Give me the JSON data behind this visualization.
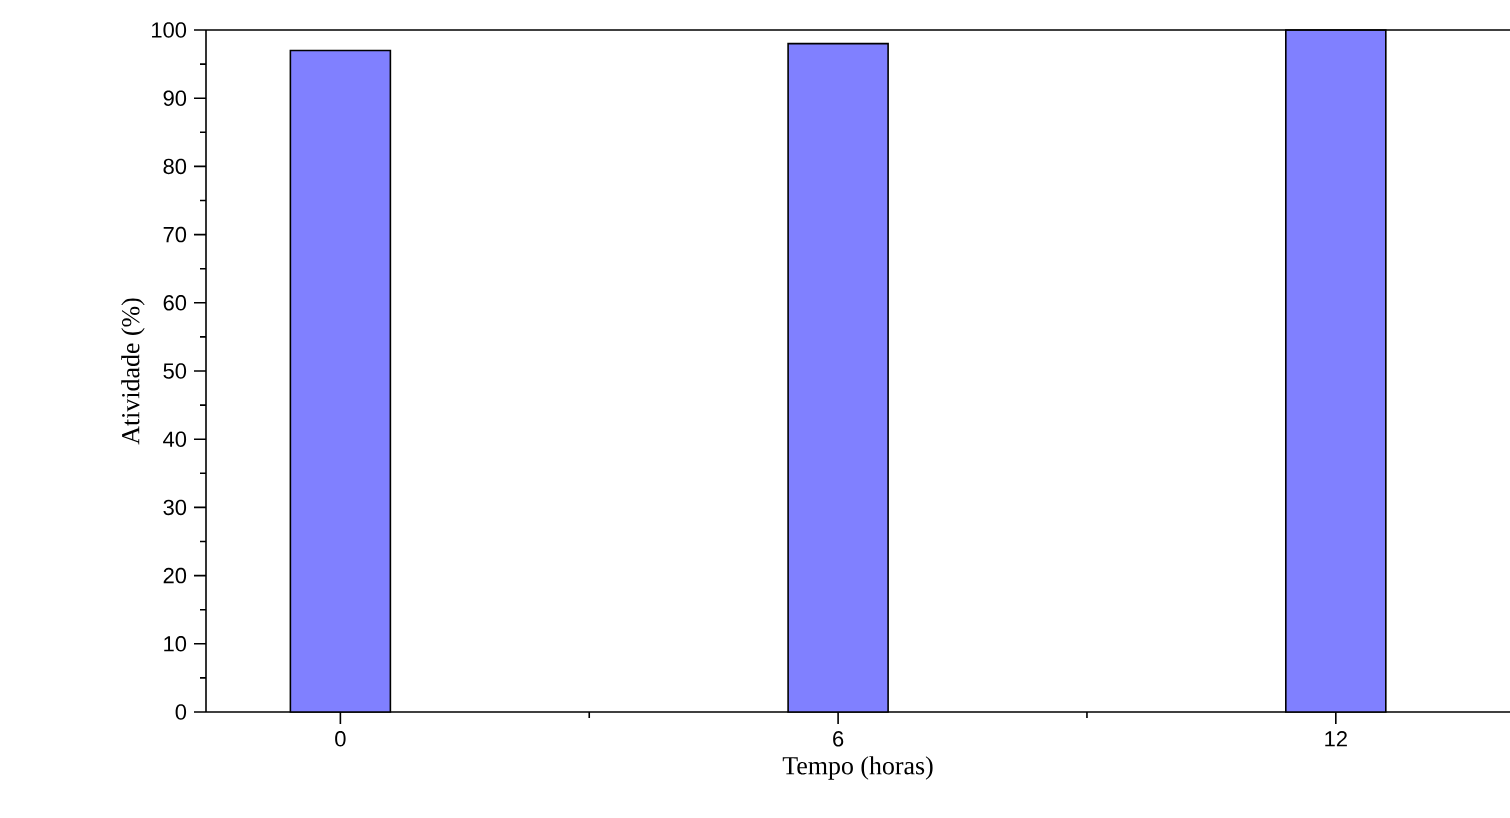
{
  "chart_data": {
    "type": "bar",
    "xlabel": "Tempo (horas)",
    "ylabel": "Atividade (%)",
    "categories": [
      "0",
      "6",
      "12"
    ],
    "values": [
      97,
      98,
      100
    ],
    "color": "#8080ff",
    "ylim": [
      0,
      100
    ],
    "yticks": [
      0,
      10,
      20,
      30,
      40,
      50,
      60,
      70,
      80,
      90,
      100
    ],
    "grid": false
  }
}
